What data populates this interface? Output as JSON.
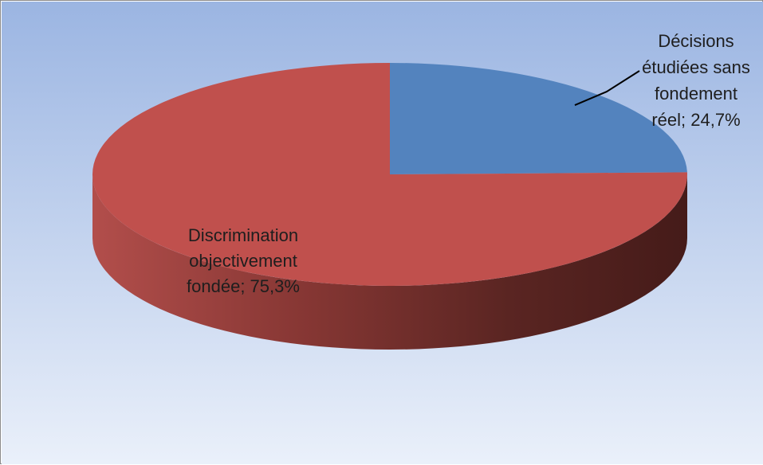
{
  "chart_data": {
    "type": "pie",
    "three_d": true,
    "title": "",
    "legend": "none",
    "slices": [
      {
        "value": 24.7,
        "color": "#5383be",
        "label_lines": [
          "Décisions",
          "étudiées sans",
          "fondement",
          "réel; 24,7%"
        ]
      },
      {
        "value": 75.3,
        "color": "#c0504d",
        "label_lines": [
          "Discrimination",
          "objectivement",
          "fondée; 75,3%"
        ]
      }
    ],
    "background_gradient": [
      "#9bb5e2",
      "#eaf0fa"
    ]
  }
}
